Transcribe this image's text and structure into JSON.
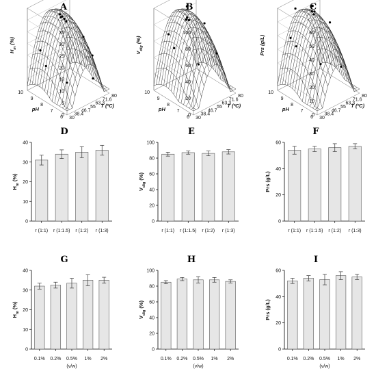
{
  "chart_data": [
    {
      "panel": "A",
      "type": "surface",
      "zlabel_main": "H",
      "zlabel_sub": "m",
      "zlabel_unit": " (%)",
      "xlabel": "T (ºC)",
      "ylabel": "pH",
      "zticks": [
        "0",
        "5",
        "10",
        "15",
        "20",
        "25",
        "30",
        "35"
      ],
      "xticks": [
        "30",
        "38.4",
        "46.7",
        "55",
        "63.3",
        "71.6",
        "80"
      ],
      "yticks": [
        "6",
        "7",
        "8",
        "9",
        "10"
      ],
      "zlim": [
        0,
        35
      ],
      "xlim": [
        30,
        80
      ],
      "ylim": [
        6,
        10
      ],
      "points": [
        [
          52,
          8.6,
          32
        ],
        [
          52,
          8.5,
          31
        ],
        [
          55,
          8.4,
          30
        ],
        [
          56,
          8.3,
          29
        ],
        [
          55,
          8.6,
          30.5
        ],
        [
          68,
          7.6,
          22
        ],
        [
          74,
          7.2,
          14
        ],
        [
          36,
          9.2,
          18
        ],
        [
          38,
          8.8,
          12
        ],
        [
          44,
          7.2,
          8
        ],
        [
          70,
          6.8,
          6
        ]
      ]
    },
    {
      "panel": "B",
      "type": "surface",
      "zlabel_main": "V",
      "zlabel_sub": "dig",
      "zlabel_unit": " (%)",
      "xlabel": "T (ºC)",
      "ylabel": "pH",
      "zticks": [
        "0",
        "20",
        "40",
        "60",
        "80",
        "100"
      ],
      "xticks": [
        "30",
        "38.4",
        "46.7",
        "55",
        "63.3",
        "71.6",
        "80"
      ],
      "yticks": [
        "6",
        "7",
        "8",
        "9",
        "10"
      ],
      "zlim": [
        0,
        100
      ],
      "xlim": [
        30,
        80
      ],
      "ylim": [
        6,
        10
      ],
      "points": [
        [
          55,
          8.8,
          98
        ],
        [
          53,
          8.6,
          87
        ],
        [
          54,
          8.5,
          84
        ],
        [
          52,
          8.6,
          85
        ],
        [
          64,
          7.8,
          80
        ],
        [
          38,
          9.2,
          70
        ],
        [
          40,
          8.8,
          55
        ],
        [
          50,
          7.2,
          42
        ],
        [
          68,
          6.9,
          48
        ]
      ]
    },
    {
      "panel": "C",
      "type": "surface",
      "zlabel_main": "Prs",
      "zlabel_sub": "",
      "zlabel_unit": " (g/L)",
      "xlabel": "T (ºC)",
      "ylabel": "pH",
      "zticks": [
        "0",
        "10",
        "20",
        "30",
        "40",
        "50",
        "60"
      ],
      "xticks": [
        "30",
        "38.4",
        "46.7",
        "55",
        "63.3",
        "71.6",
        "80"
      ],
      "yticks": [
        "6",
        "7",
        "8",
        "9",
        "10"
      ],
      "zlim": [
        0,
        60
      ],
      "xlim": [
        30,
        80
      ],
      "ylim": [
        6,
        10
      ],
      "points": [
        [
          44,
          9.4,
          58
        ],
        [
          55,
          8.6,
          60
        ],
        [
          53,
          8.5,
          57
        ],
        [
          54,
          8.4,
          55
        ],
        [
          56,
          8.5,
          56
        ],
        [
          66,
          7.8,
          48
        ],
        [
          36,
          9.2,
          40
        ],
        [
          38,
          8.8,
          35
        ],
        [
          48,
          7.2,
          26
        ],
        [
          70,
          7,
          18
        ]
      ]
    },
    {
      "panel": "D",
      "type": "bar",
      "ylabel_main": "H",
      "ylabel_sub": "m",
      "ylabel_unit": " (%)",
      "categories": [
        "r (1:1)",
        "r (1:1.5)",
        "r (1:2)",
        "r (1:3)"
      ],
      "values": [
        31,
        34,
        35,
        36
      ],
      "errors": [
        2.5,
        2.2,
        2.8,
        2.5
      ],
      "ylim": [
        0,
        40
      ],
      "yticks": [
        "0",
        "10",
        "20",
        "30",
        "40"
      ],
      "xlabel": ""
    },
    {
      "panel": "E",
      "type": "bar",
      "ylabel_main": "V",
      "ylabel_sub": "dig",
      "ylabel_unit": " (%)",
      "categories": [
        "r (1:1)",
        "r (1:1.5)",
        "r (1:2)",
        "r (1:3)"
      ],
      "values": [
        85,
        87,
        86,
        88
      ],
      "errors": [
        2.5,
        2.0,
        3.0,
        2.8
      ],
      "ylim": [
        0,
        100
      ],
      "yticks": [
        "0",
        "20",
        "40",
        "60",
        "80",
        "100"
      ],
      "xlabel": ""
    },
    {
      "panel": "F",
      "type": "bar",
      "ylabel_main": "Prs",
      "ylabel_sub": "",
      "ylabel_unit": " (g/L)",
      "categories": [
        "r (1:1)",
        "r (1:1.5)",
        "r (1:2)",
        "r (1:3)"
      ],
      "values": [
        54,
        55,
        56,
        57
      ],
      "errors": [
        3.0,
        2.0,
        3.0,
        2.0
      ],
      "ylim": [
        0,
        60
      ],
      "yticks": [
        "0",
        "20",
        "40",
        "60"
      ],
      "xlabel": ""
    },
    {
      "panel": "G",
      "type": "bar",
      "ylabel_main": "H",
      "ylabel_sub": "m",
      "ylabel_unit": " (%)",
      "categories": [
        "0.1%",
        "0.2%",
        "0.5%",
        "1%",
        "2%"
      ],
      "values": [
        32,
        32.5,
        33.5,
        35,
        35
      ],
      "errors": [
        1.5,
        1.5,
        2.5,
        2.8,
        1.5
      ],
      "ylim": [
        0,
        40
      ],
      "yticks": [
        "0",
        "10",
        "20",
        "30",
        "40"
      ],
      "xlabel": "(v/w)"
    },
    {
      "panel": "H",
      "type": "bar",
      "ylabel_main": "V",
      "ylabel_sub": "dig",
      "ylabel_unit": " (%)",
      "categories": [
        "0.1%",
        "0.2%",
        "0.5%",
        "1%",
        "2%"
      ],
      "values": [
        85,
        89,
        88,
        88,
        86
      ],
      "errors": [
        2.0,
        2.0,
        4.0,
        3.0,
        2.0
      ],
      "ylim": [
        0,
        100
      ],
      "yticks": [
        "0",
        "20",
        "40",
        "60",
        "80",
        "100"
      ],
      "xlabel": "(v/w)"
    },
    {
      "panel": "I",
      "type": "bar",
      "ylabel_main": "Prs",
      "ylabel_sub": "",
      "ylabel_unit": " (g/L)",
      "categories": [
        "0.1%",
        "0.2%",
        "0.5%",
        "1%",
        "2%"
      ],
      "values": [
        52,
        54,
        53,
        56,
        55
      ],
      "errors": [
        2.0,
        2.0,
        4.0,
        3.0,
        2.0
      ],
      "ylim": [
        0,
        60
      ],
      "yticks": [
        "0",
        "20",
        "40",
        "60"
      ],
      "xlabel": "(v/w)"
    }
  ]
}
